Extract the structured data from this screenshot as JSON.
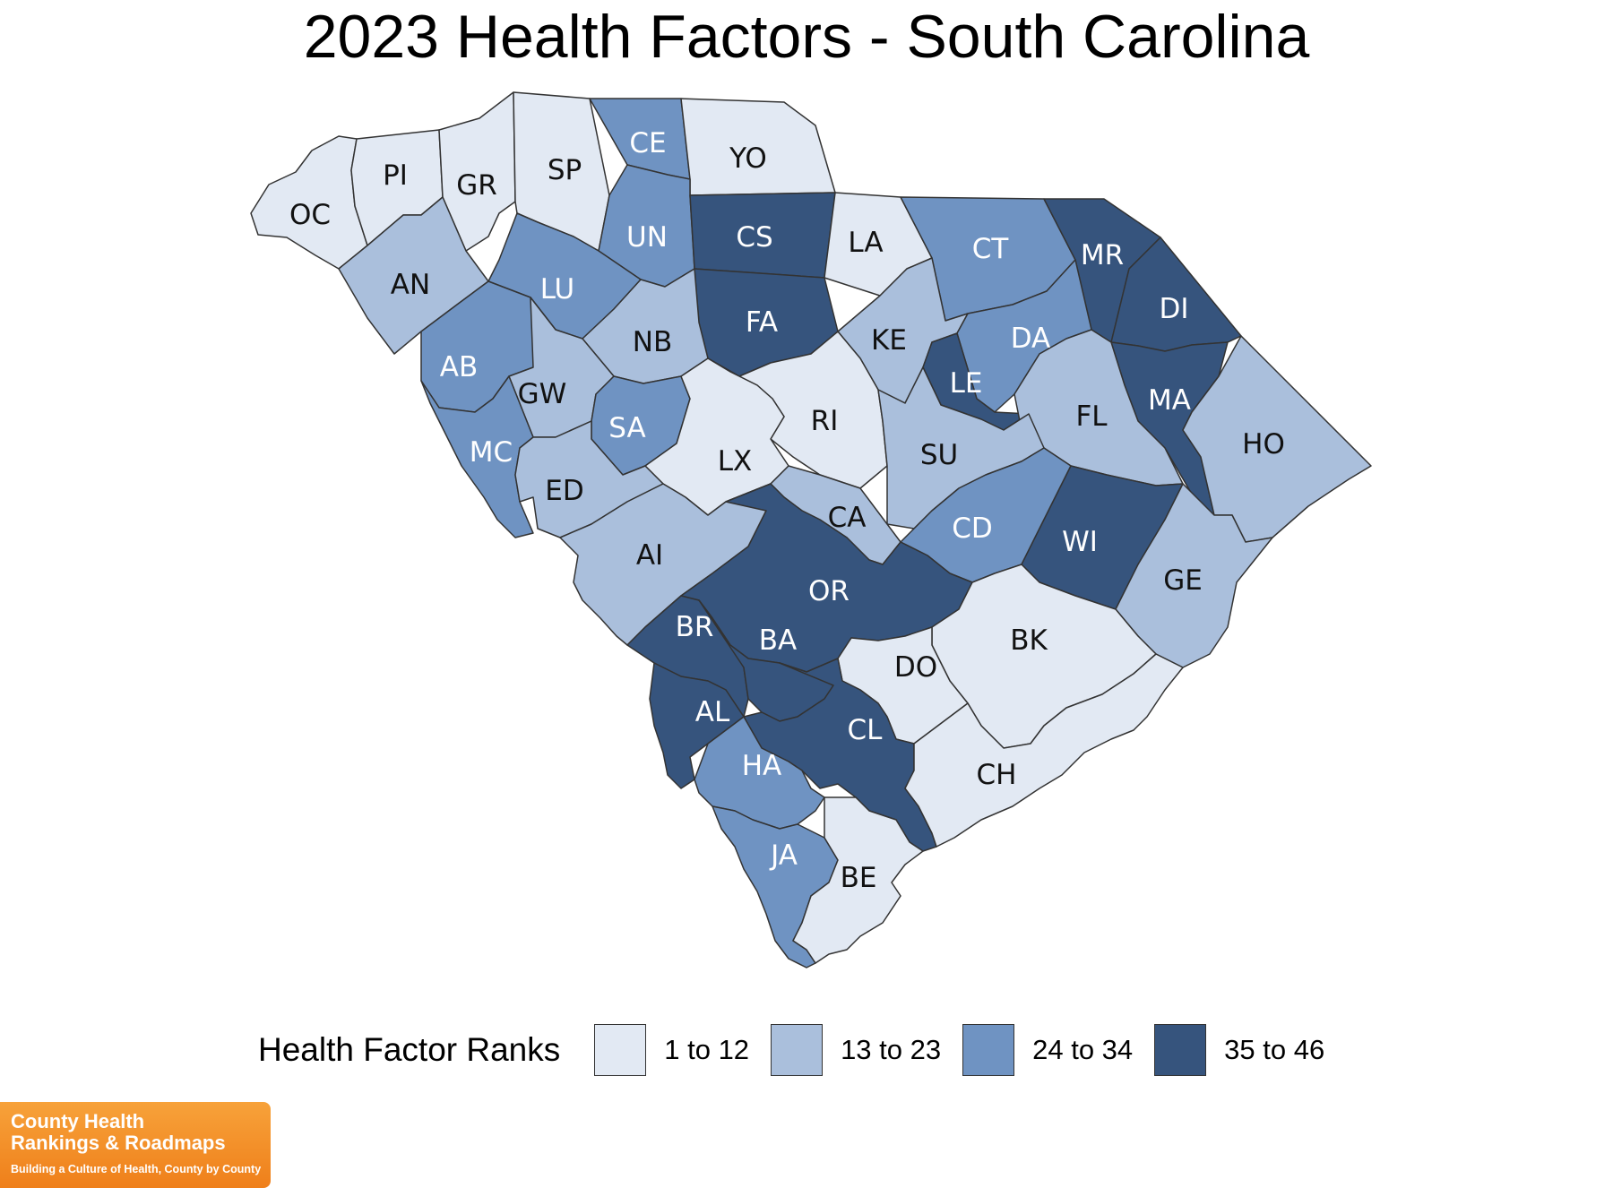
{
  "title": "2023 Health Factors - South Carolina",
  "legend": {
    "title": "Health Factor Ranks",
    "items": [
      {
        "label": "1 to 12",
        "color": "#e2e9f3"
      },
      {
        "label": "13 to 23",
        "color": "#aabfdc"
      },
      {
        "label": "24 to 34",
        "color": "#6f93c2"
      },
      {
        "label": "35 to 46",
        "color": "#36547d"
      }
    ]
  },
  "logo": {
    "line1": "County Health",
    "line2": "Rankings & Roadmaps",
    "line3": "Building a Culture of Health, County by County"
  },
  "counties": [
    {
      "abbr": "OC",
      "rank_group": "1 to 12"
    },
    {
      "abbr": "PI",
      "rank_group": "1 to 12"
    },
    {
      "abbr": "GR",
      "rank_group": "1 to 12"
    },
    {
      "abbr": "SP",
      "rank_group": "1 to 12"
    },
    {
      "abbr": "CE",
      "rank_group": "24 to 34"
    },
    {
      "abbr": "YO",
      "rank_group": "1 to 12"
    },
    {
      "abbr": "AN",
      "rank_group": "13 to 23"
    },
    {
      "abbr": "UN",
      "rank_group": "24 to 34"
    },
    {
      "abbr": "CS",
      "rank_group": "35 to 46"
    },
    {
      "abbr": "LA",
      "rank_group": "1 to 12"
    },
    {
      "abbr": "CT",
      "rank_group": "24 to 34"
    },
    {
      "abbr": "MR",
      "rank_group": "35 to 46"
    },
    {
      "abbr": "LU",
      "rank_group": "24 to 34"
    },
    {
      "abbr": "FA",
      "rank_group": "35 to 46"
    },
    {
      "abbr": "DI",
      "rank_group": "35 to 46"
    },
    {
      "abbr": "NB",
      "rank_group": "13 to 23"
    },
    {
      "abbr": "KE",
      "rank_group": "13 to 23"
    },
    {
      "abbr": "DA",
      "rank_group": "24 to 34"
    },
    {
      "abbr": "AB",
      "rank_group": "24 to 34"
    },
    {
      "abbr": "GW",
      "rank_group": "13 to 23"
    },
    {
      "abbr": "LE",
      "rank_group": "35 to 46"
    },
    {
      "abbr": "MA",
      "rank_group": "35 to 46"
    },
    {
      "abbr": "RI",
      "rank_group": "1 to 12"
    },
    {
      "abbr": "FL",
      "rank_group": "13 to 23"
    },
    {
      "abbr": "HO",
      "rank_group": "13 to 23"
    },
    {
      "abbr": "SA",
      "rank_group": "24 to 34"
    },
    {
      "abbr": "MC",
      "rank_group": "24 to 34"
    },
    {
      "abbr": "LX",
      "rank_group": "1 to 12"
    },
    {
      "abbr": "SU",
      "rank_group": "13 to 23"
    },
    {
      "abbr": "ED",
      "rank_group": "13 to 23"
    },
    {
      "abbr": "CA",
      "rank_group": "13 to 23"
    },
    {
      "abbr": "CD",
      "rank_group": "24 to 34"
    },
    {
      "abbr": "WI",
      "rank_group": "35 to 46"
    },
    {
      "abbr": "AI",
      "rank_group": "13 to 23"
    },
    {
      "abbr": "OR",
      "rank_group": "35 to 46"
    },
    {
      "abbr": "GE",
      "rank_group": "13 to 23"
    },
    {
      "abbr": "BR",
      "rank_group": "35 to 46"
    },
    {
      "abbr": "BA",
      "rank_group": "35 to 46"
    },
    {
      "abbr": "BK",
      "rank_group": "1 to 12"
    },
    {
      "abbr": "DO",
      "rank_group": "1 to 12"
    },
    {
      "abbr": "AL",
      "rank_group": "35 to 46"
    },
    {
      "abbr": "CL",
      "rank_group": "35 to 46"
    },
    {
      "abbr": "HA",
      "rank_group": "24 to 34"
    },
    {
      "abbr": "CH",
      "rank_group": "1 to 12"
    },
    {
      "abbr": "JA",
      "rank_group": "24 to 34"
    },
    {
      "abbr": "BE",
      "rank_group": "1 to 12"
    }
  ]
}
